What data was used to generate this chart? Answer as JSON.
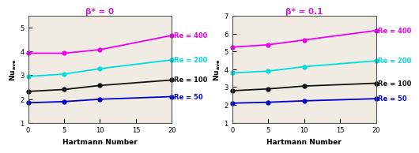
{
  "left": {
    "title": "β* = 0",
    "xlabel": "Hartmann Number",
    "ylabel": "Nu",
    "ylabel_sub": "ave",
    "ylim": [
      1,
      5.5
    ],
    "yticks": [
      1,
      2,
      3,
      4,
      5
    ],
    "xlim": [
      0,
      20
    ],
    "xticks": [
      0,
      5,
      10,
      15,
      20
    ],
    "Ha": [
      0,
      5,
      10,
      20
    ],
    "series": [
      {
        "label": "Re = 400",
        "color": "#ee00ee",
        "values": [
          3.93,
          3.93,
          4.08,
          4.68
        ]
      },
      {
        "label": "Re = 200",
        "color": "#00dddd",
        "values": [
          2.95,
          3.05,
          3.28,
          3.65
        ]
      },
      {
        "label": "Re = 100",
        "color": "#111111",
        "values": [
          2.32,
          2.4,
          2.57,
          2.8
        ]
      },
      {
        "label": "Re = 50",
        "color": "#0000cc",
        "values": [
          1.84,
          1.89,
          1.99,
          2.1
        ]
      }
    ]
  },
  "right": {
    "title": "β* = 0.1",
    "xlabel": "Hartmann Number",
    "ylabel": "Nu",
    "ylabel_sub": "ave",
    "ylim": [
      1,
      7
    ],
    "yticks": [
      1,
      2,
      3,
      4,
      5,
      6,
      7
    ],
    "xlim": [
      0,
      20
    ],
    "xticks": [
      0,
      5,
      10,
      15,
      20
    ],
    "Ha": [
      0,
      5,
      10,
      20
    ],
    "series": [
      {
        "label": "Re = 400",
        "color": "#ee00ee",
        "values": [
          5.25,
          5.38,
          5.65,
          6.18
        ]
      },
      {
        "label": "Re = 200",
        "color": "#00dddd",
        "values": [
          3.8,
          3.9,
          4.15,
          4.48
        ]
      },
      {
        "label": "Re = 100",
        "color": "#111111",
        "values": [
          2.8,
          2.9,
          3.06,
          3.22
        ]
      },
      {
        "label": "Re = 50",
        "color": "#0000cc",
        "values": [
          2.1,
          2.15,
          2.23,
          2.35
        ]
      }
    ]
  },
  "fig_bg": "#ffffff",
  "ax_bg": "#f0ece4",
  "label_fontsize": 6.5,
  "title_fontsize": 7.5,
  "tick_fontsize": 6,
  "annot_fontsize": 6,
  "marker": "o",
  "markersize": 3.5,
  "linewidth": 1.3,
  "title_color": "#cc22cc"
}
